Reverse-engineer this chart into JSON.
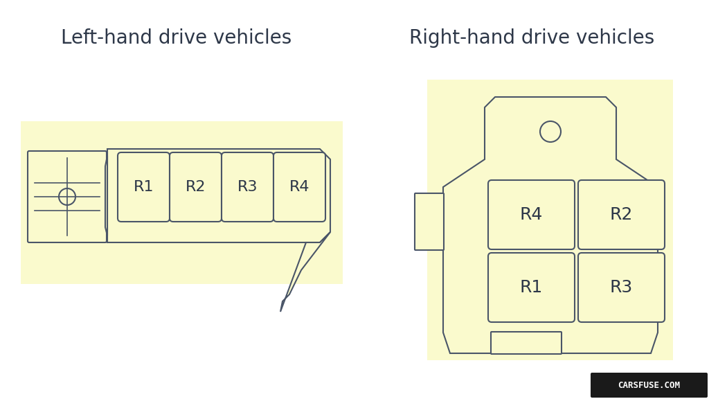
{
  "bg_color": "#ffffff",
  "diagram_bg": "#fafacd",
  "outline_color": "#4a5568",
  "title_left": "Left-hand drive vehicles",
  "title_right": "Right-hand drive vehicles",
  "title_fontsize": 20,
  "relay_label_fontsize": 16,
  "watermark_text": "CARSFUSE.COM",
  "watermark_bg": "#1a1a1a",
  "watermark_color": "#ffffff",
  "lhd_relays": [
    "R1",
    "R2",
    "R3",
    "R4"
  ],
  "rhd_relays_top": [
    "R4",
    "R2"
  ],
  "rhd_relays_bot": [
    "R1",
    "R3"
  ]
}
